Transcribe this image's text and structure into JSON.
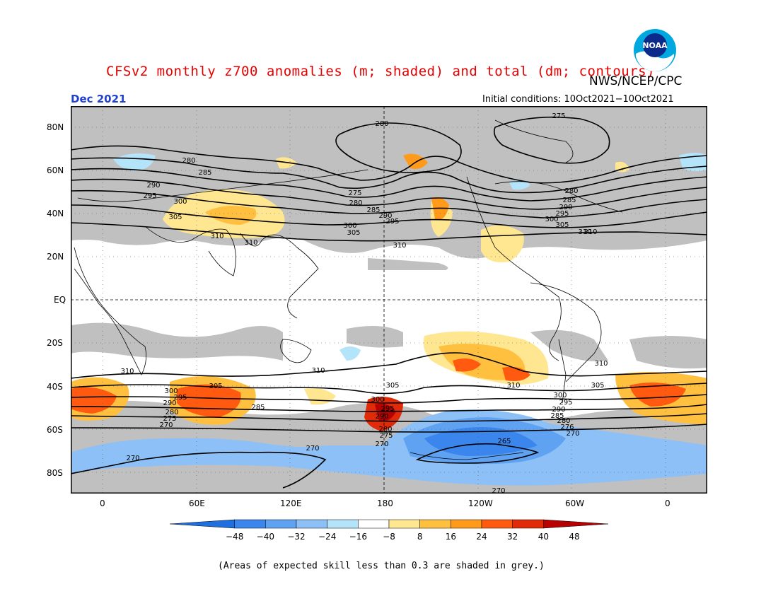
{
  "header": {
    "title": "CFSv2 monthly z700 anomalies (m; shaded) and total (dm; contours)",
    "agency": "NWS/NCEP/CPC",
    "period": "Dec 2021",
    "initial_conditions": "Initial conditions: 10Oct2021−10Oct2021",
    "logo_text": "NOAA"
  },
  "map": {
    "lat_labels": [
      "80N",
      "60N",
      "40N",
      "20N",
      "EQ",
      "20S",
      "40S",
      "60S",
      "80S"
    ],
    "lon_labels": [
      "0",
      "60E",
      "120E",
      "180",
      "120W",
      "60W",
      "0"
    ],
    "contour_labels": [
      "275",
      "280",
      "280",
      "285",
      "290",
      "295",
      "300",
      "305",
      "310",
      "310",
      "275",
      "280",
      "285",
      "290",
      "295",
      "300",
      "305",
      "280",
      "285",
      "290",
      "295",
      "300",
      "305",
      "310",
      "310",
      "310",
      "310",
      "310",
      "305",
      "300",
      "295",
      "290",
      "285",
      "280",
      "275",
      "270",
      "270",
      "270",
      "305",
      "300",
      "295",
      "290",
      "280",
      "275",
      "270",
      "265",
      "270",
      "305",
      "300",
      "295",
      "290",
      "285",
      "280",
      "276",
      "270",
      "310",
      "310"
    ]
  },
  "colorbar": {
    "labels": [
      "−48",
      "−40",
      "−32",
      "−24",
      "−16",
      "−8",
      "8",
      "16",
      "24",
      "32",
      "40",
      "48"
    ],
    "colors": [
      "#1e6fe0",
      "#3a86ec",
      "#5fa2f2",
      "#8cc0f6",
      "#b4e4fa",
      "#ffffff",
      "#ffe690",
      "#ffc040",
      "#ff9a1a",
      "#ff5a10",
      "#e02a08",
      "#b80000"
    ]
  },
  "footnote": "(Areas of expected skill less than 0.3 are shaded in grey.)",
  "colors": {
    "title": "#e60000",
    "period": "#2040d0",
    "skill_grey": "#c0c0c0"
  }
}
